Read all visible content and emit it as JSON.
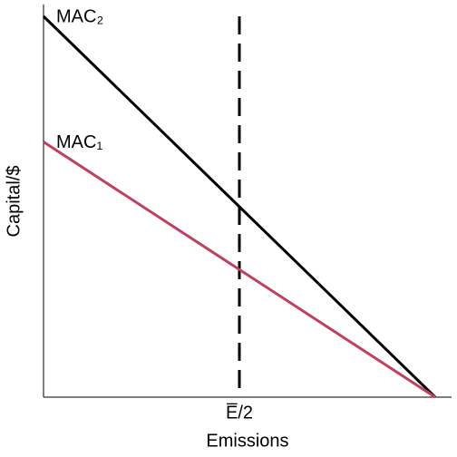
{
  "chart_data": {
    "type": "line",
    "x_label": "Emissions",
    "y_label": "Capital/$",
    "x": [
      0,
      96
    ],
    "series": [
      {
        "name": "MAC₂",
        "color": "#000000",
        "values": [
          97,
          0
        ]
      },
      {
        "name": "MAC₁",
        "color": "#c0405f",
        "values": [
          65,
          0
        ]
      }
    ],
    "xlim": [
      0,
      100
    ],
    "ylim": [
      0,
      100
    ],
    "xticks": [
      {
        "value": 48,
        "label": "E̅/2"
      }
    ],
    "yticks": [],
    "grid": false
  }
}
